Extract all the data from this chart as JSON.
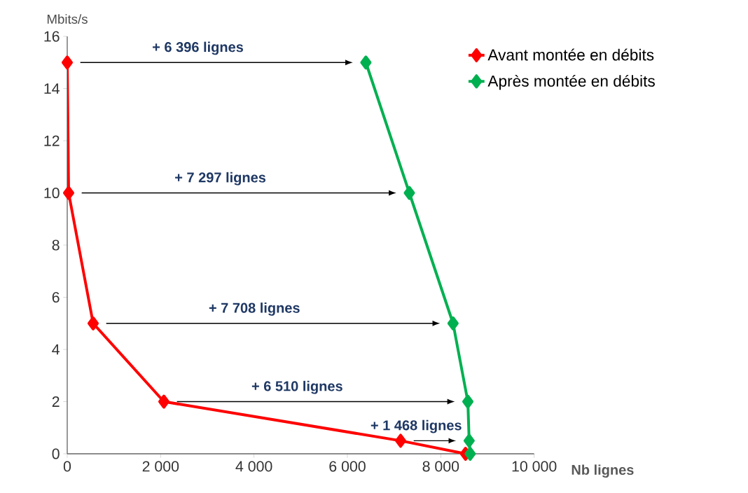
{
  "chart_data": {
    "type": "line",
    "xlabel": "Nb lignes",
    "ylabel": "Mbits/s",
    "marker": "diamond",
    "legend": "top right",
    "grid": false,
    "xlim": [
      0,
      10000
    ],
    "ylim": [
      0,
      16
    ],
    "xticks": [
      0,
      {
        "value": 2000,
        "label": "2 000"
      },
      {
        "value": 4000,
        "label": "4 000"
      },
      {
        "value": 6000,
        "label": "6 000"
      },
      {
        "value": 8000,
        "label": "8 000"
      },
      {
        "value": 10000,
        "label": "10 000"
      }
    ],
    "yticks": [
      0,
      2,
      4,
      6,
      8,
      10,
      12,
      14,
      16
    ],
    "series": [
      {
        "name": "Avant montée en débits",
        "color": "#ff0000",
        "x": [
          0,
          30,
          555,
          2070,
          7140,
          8530
        ],
        "values": [
          15,
          10,
          5,
          2,
          0.5,
          0
        ]
      },
      {
        "name": "Après montée en débits",
        "color": "#00b050",
        "x": [
          6396,
          7327,
          8263,
          8580,
          8608,
          8630
        ],
        "values": [
          15,
          10,
          5,
          2,
          0.5,
          0
        ]
      }
    ],
    "annotations": [
      "+ 6 396 lignes",
      "+ 7 297 lignes",
      "+ 7 708 lignes",
      "+ 6 510 lignes",
      "+ 1 468 lignes"
    ]
  }
}
